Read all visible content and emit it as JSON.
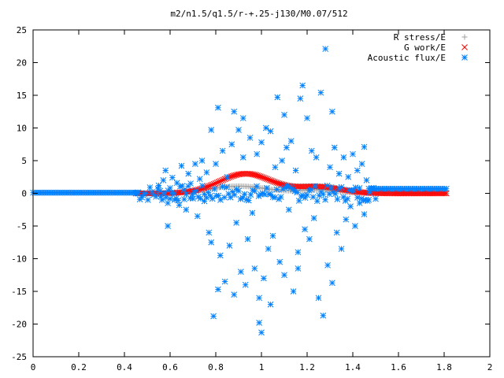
{
  "chart_data": {
    "type": "scatter",
    "title": "m2/n1.5/q1.5/r-+.25-j130/M0.07/512",
    "xlabel": "",
    "ylabel": "",
    "xlim": [
      0,
      2
    ],
    "ylim": [
      -25,
      25
    ],
    "x_ticks": [
      "0",
      "0.2",
      "0.4",
      "0.6",
      "0.8",
      "1",
      "1.2",
      "1.4",
      "1.6",
      "1.8",
      "2"
    ],
    "y_ticks": [
      "25",
      "20",
      "15",
      "10",
      "5",
      "0",
      "-5",
      "-10",
      "-15",
      "-20",
      "-25"
    ],
    "grid": false,
    "legend_position": "top-right",
    "series": [
      {
        "name": "R stress/E",
        "marker": "plus",
        "color": "#a0a0a0",
        "curve": {
          "x_start": 0.45,
          "x_end": 1.81,
          "peak_x": 0.9,
          "peak_y": 1.1,
          "width": 0.18,
          "tail_x": 1.25,
          "tail_y": 0.5,
          "tail_width": 0.12,
          "samples": 180
        }
      },
      {
        "name": "G work/E",
        "marker": "cross",
        "color": "#ff0000",
        "curve": {
          "x_start": 0.45,
          "x_end": 1.81,
          "peak_x": 0.93,
          "peak_y": 3.0,
          "width": 0.16,
          "tail_x": 1.25,
          "tail_y": 1.0,
          "tail_width": 0.14,
          "samples": 200
        }
      },
      {
        "name": "Acoustic flux/E",
        "marker": "star",
        "color": "#0080ff",
        "baseline": {
          "left": {
            "x_start": 0.0,
            "x_end": 0.46,
            "y": 0.1,
            "samples": 60
          },
          "right": {
            "x_start": 1.47,
            "x_end": 1.81,
            "y": 0.7,
            "samples": 40
          },
          "near_zero": {
            "x_start": 0.45,
            "x_end": 1.5,
            "amp": 1.2,
            "samples": 120
          }
        },
        "scatter": [
          [
            0.55,
            1.2
          ],
          [
            0.56,
            -0.5
          ],
          [
            0.57,
            2.0
          ],
          [
            0.58,
            3.5
          ],
          [
            0.59,
            -1.5
          ],
          [
            0.6,
            0.8
          ],
          [
            0.61,
            2.4
          ],
          [
            0.62,
            -1.0
          ],
          [
            0.63,
            1.6
          ],
          [
            0.64,
            -1.8
          ],
          [
            0.65,
            4.2
          ],
          [
            0.66,
            0.5
          ],
          [
            0.67,
            -2.5
          ],
          [
            0.68,
            3.0
          ],
          [
            0.69,
            1.5
          ],
          [
            0.7,
            -0.8
          ],
          [
            0.71,
            4.5
          ],
          [
            0.72,
            -3.5
          ],
          [
            0.73,
            2.2
          ],
          [
            0.74,
            5.0
          ],
          [
            0.75,
            -1.2
          ],
          [
            0.76,
            3.2
          ],
          [
            0.77,
            -6.0
          ],
          [
            0.78,
            9.7
          ],
          [
            0.78,
            -7.5
          ],
          [
            0.79,
            -18.8
          ],
          [
            0.8,
            4.5
          ],
          [
            0.81,
            13.1
          ],
          [
            0.81,
            -14.7
          ],
          [
            0.82,
            -9.5
          ],
          [
            0.83,
            6.5
          ],
          [
            0.84,
            -13.5
          ],
          [
            0.85,
            2.5
          ],
          [
            0.86,
            -8.0
          ],
          [
            0.87,
            7.5
          ],
          [
            0.88,
            -15.5
          ],
          [
            0.89,
            -4.5
          ],
          [
            0.9,
            9.7
          ],
          [
            0.91,
            -12.0
          ],
          [
            0.92,
            5.5
          ],
          [
            0.93,
            -14.0
          ],
          [
            0.94,
            -7.0
          ],
          [
            0.95,
            8.5
          ],
          [
            0.96,
            -3.0
          ],
          [
            0.97,
            -11.5
          ],
          [
            0.98,
            6.0
          ],
          [
            0.99,
            -16.0
          ],
          [
            1.0,
            7.8
          ],
          [
            1.01,
            -13.0
          ],
          [
            1.02,
            10.0
          ],
          [
            1.03,
            -8.5
          ],
          [
            1.04,
            9.5
          ],
          [
            1.05,
            -6.5
          ],
          [
            1.06,
            4.0
          ],
          [
            1.07,
            14.7
          ],
          [
            1.08,
            -10.5
          ],
          [
            1.09,
            5.0
          ],
          [
            1.1,
            -12.5
          ],
          [
            1.11,
            7.0
          ],
          [
            1.12,
            -2.5
          ],
          [
            1.13,
            8.0
          ],
          [
            1.14,
            -15.0
          ],
          [
            1.15,
            3.5
          ],
          [
            1.16,
            -9.0
          ],
          [
            1.17,
            14.5
          ],
          [
            1.18,
            16.5
          ],
          [
            1.19,
            -5.5
          ],
          [
            1.2,
            11.5
          ],
          [
            1.21,
            -7.0
          ],
          [
            1.22,
            6.5
          ],
          [
            1.23,
            -3.8
          ],
          [
            1.24,
            5.5
          ],
          [
            1.25,
            -16.0
          ],
          [
            1.26,
            15.4
          ],
          [
            1.27,
            -18.7
          ],
          [
            1.28,
            22.1
          ],
          [
            1.29,
            -11.0
          ],
          [
            1.3,
            4.0
          ],
          [
            1.31,
            -13.7
          ],
          [
            1.32,
            7.0
          ],
          [
            1.33,
            -6.0
          ],
          [
            1.34,
            3.0
          ],
          [
            1.35,
            -8.5
          ],
          [
            1.36,
            5.5
          ],
          [
            1.37,
            -4.0
          ],
          [
            1.38,
            2.5
          ],
          [
            1.39,
            -2.0
          ],
          [
            1.4,
            6.0
          ],
          [
            1.41,
            -5.0
          ],
          [
            1.42,
            3.5
          ],
          [
            1.43,
            -1.5
          ],
          [
            1.44,
            4.5
          ],
          [
            1.45,
            -3.2
          ],
          [
            1.46,
            2.0
          ],
          [
            1.47,
            -1.0
          ],
          [
            0.99,
            -19.8
          ],
          [
            1.0,
            -21.3
          ],
          [
            1.04,
            -17.0
          ],
          [
            1.1,
            12.0
          ],
          [
            1.16,
            -11.5
          ],
          [
            0.88,
            12.5
          ],
          [
            0.92,
            11.5
          ],
          [
            1.31,
            12.5
          ],
          [
            1.45,
            7.1
          ],
          [
            0.59,
            -5.0
          ]
        ]
      }
    ]
  }
}
